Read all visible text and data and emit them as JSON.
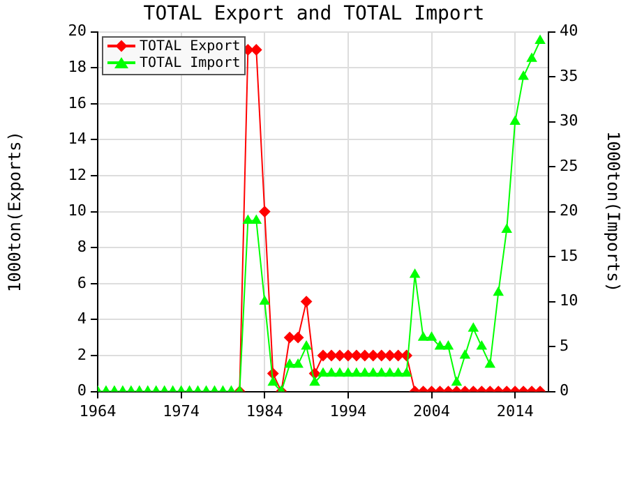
{
  "chart_data": {
    "type": "line",
    "title": "TOTAL Export and TOTAL Import",
    "ylabel": "1000ton(Exports)",
    "y2label": "1000ton(Imports)",
    "x": [
      1964,
      1965,
      1966,
      1967,
      1968,
      1969,
      1970,
      1971,
      1972,
      1973,
      1974,
      1975,
      1976,
      1977,
      1978,
      1979,
      1980,
      1981,
      1982,
      1983,
      1984,
      1985,
      1986,
      1987,
      1988,
      1989,
      1990,
      1991,
      1992,
      1993,
      1994,
      1995,
      1996,
      1997,
      1998,
      1999,
      2000,
      2001,
      2002,
      2003,
      2004,
      2005,
      2006,
      2007,
      2008,
      2009,
      2010,
      2011,
      2012,
      2013,
      2014,
      2015,
      2016,
      2017
    ],
    "series": [
      {
        "name": "TOTAL Export",
        "color": "#ff0000",
        "marker": "diamond",
        "values": [
          null,
          null,
          null,
          null,
          null,
          null,
          null,
          null,
          null,
          null,
          null,
          null,
          null,
          null,
          null,
          null,
          null,
          0,
          19,
          19,
          10,
          1,
          0,
          3,
          3,
          5,
          1,
          2,
          2,
          2,
          2,
          2,
          2,
          2,
          2,
          2,
          2,
          2,
          0,
          0,
          0,
          0,
          0,
          0,
          0,
          0,
          0,
          0,
          0,
          0,
          0,
          0,
          0,
          0
        ]
      },
      {
        "name": "TOTAL Import",
        "color": "#00ff00",
        "marker": "triangle",
        "axis": "y2",
        "values": [
          0,
          0,
          0,
          0,
          0,
          0,
          0,
          0,
          0,
          0,
          0,
          0,
          0,
          0,
          0,
          0,
          0,
          0,
          19,
          19,
          10,
          1,
          0,
          3,
          3,
          5,
          1,
          2,
          2,
          2,
          2,
          2,
          2,
          2,
          2,
          2,
          2,
          2,
          13,
          6,
          6,
          5,
          5,
          1,
          4,
          7,
          5,
          3,
          11,
          18,
          30,
          35,
          37,
          39
        ]
      }
    ],
    "xlim": [
      1964,
      2018
    ],
    "xticks": [
      1964,
      1974,
      1984,
      1994,
      2004,
      2014
    ],
    "ylim": [
      0,
      20
    ],
    "yticks": [
      0,
      2,
      4,
      6,
      8,
      10,
      12,
      14,
      16,
      18,
      20
    ],
    "y2lim": [
      0,
      40
    ],
    "y2ticks": [
      0,
      5,
      10,
      15,
      20,
      25,
      30,
      35,
      40
    ],
    "grid": true,
    "legend": "top left",
    "line_style": "solid"
  }
}
